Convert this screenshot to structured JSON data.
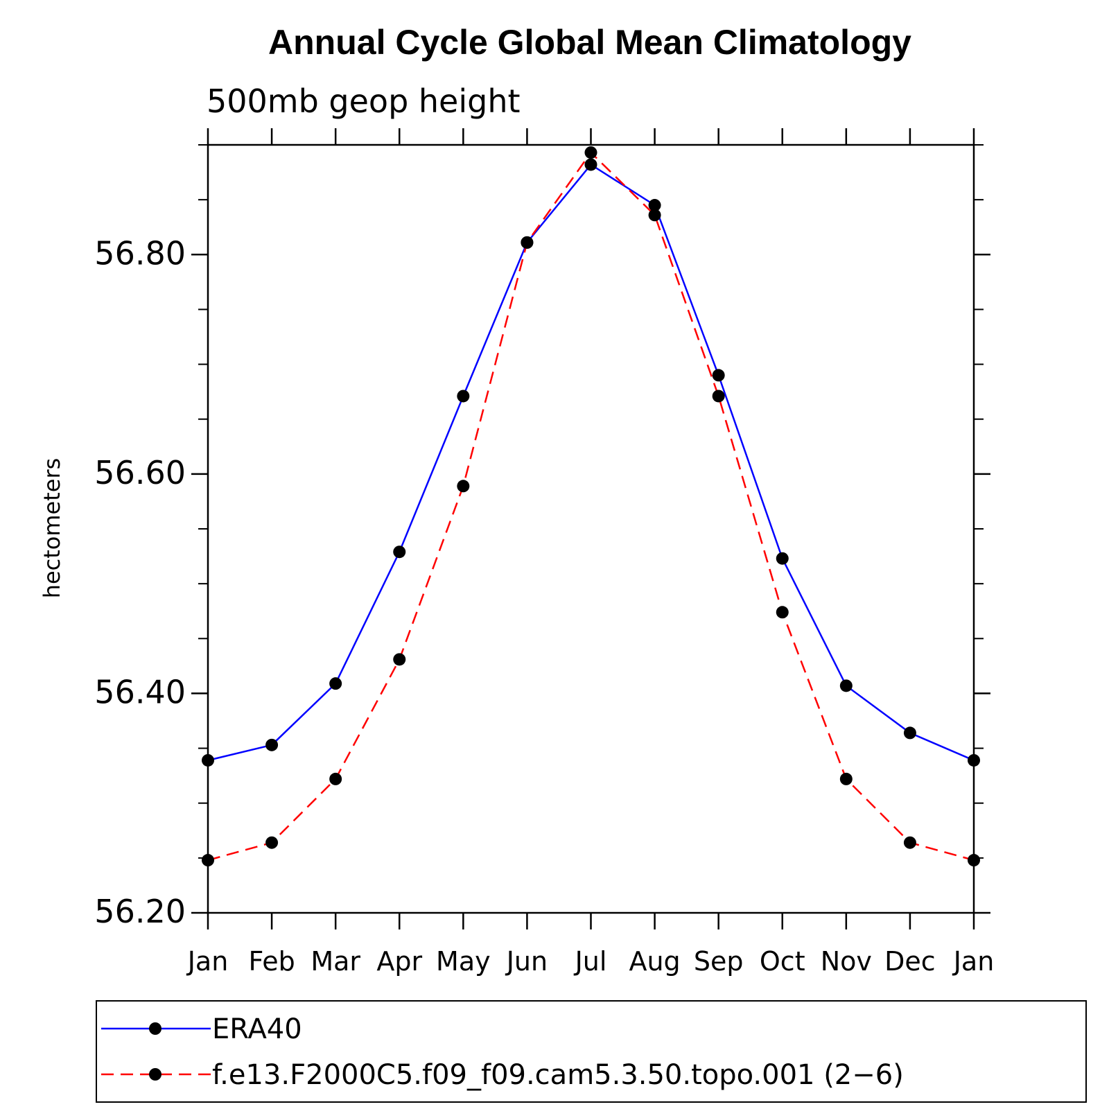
{
  "chart_data": {
    "type": "line",
    "title": "Annual Cycle Global Mean Climatology",
    "subtitle": "500mb geop height",
    "ylabel": "hectometers",
    "xlabel": "",
    "categories": [
      "Jan",
      "Feb",
      "Mar",
      "Apr",
      "May",
      "Jun",
      "Jul",
      "Aug",
      "Sep",
      "Oct",
      "Nov",
      "Dec",
      "Jan"
    ],
    "ylim": [
      56.2,
      56.9
    ],
    "yticks": [
      56.2,
      56.4,
      56.6,
      56.8
    ],
    "ytick_labels": [
      "56.20",
      "56.40",
      "56.60",
      "56.80"
    ],
    "series": [
      {
        "name": "ERA40",
        "color": "#0000ff",
        "line_style": "solid",
        "marker": "filled-circle",
        "values": [
          56.339,
          56.353,
          56.409,
          56.529,
          56.671,
          56.811,
          56.882,
          56.845,
          56.69,
          56.523,
          56.407,
          56.364,
          56.339
        ]
      },
      {
        "name": "f.e13.F2000C5.f09_f09.cam5.3.50.topo.001 (2−6)",
        "color": "#ff0000",
        "line_style": "dashed",
        "marker": "filled-circle",
        "values": [
          56.248,
          56.264,
          56.322,
          56.431,
          56.589,
          56.811,
          56.893,
          56.836,
          56.671,
          56.474,
          56.322,
          56.264,
          56.248
        ]
      }
    ],
    "grid": false,
    "legend_position": "bottom"
  }
}
